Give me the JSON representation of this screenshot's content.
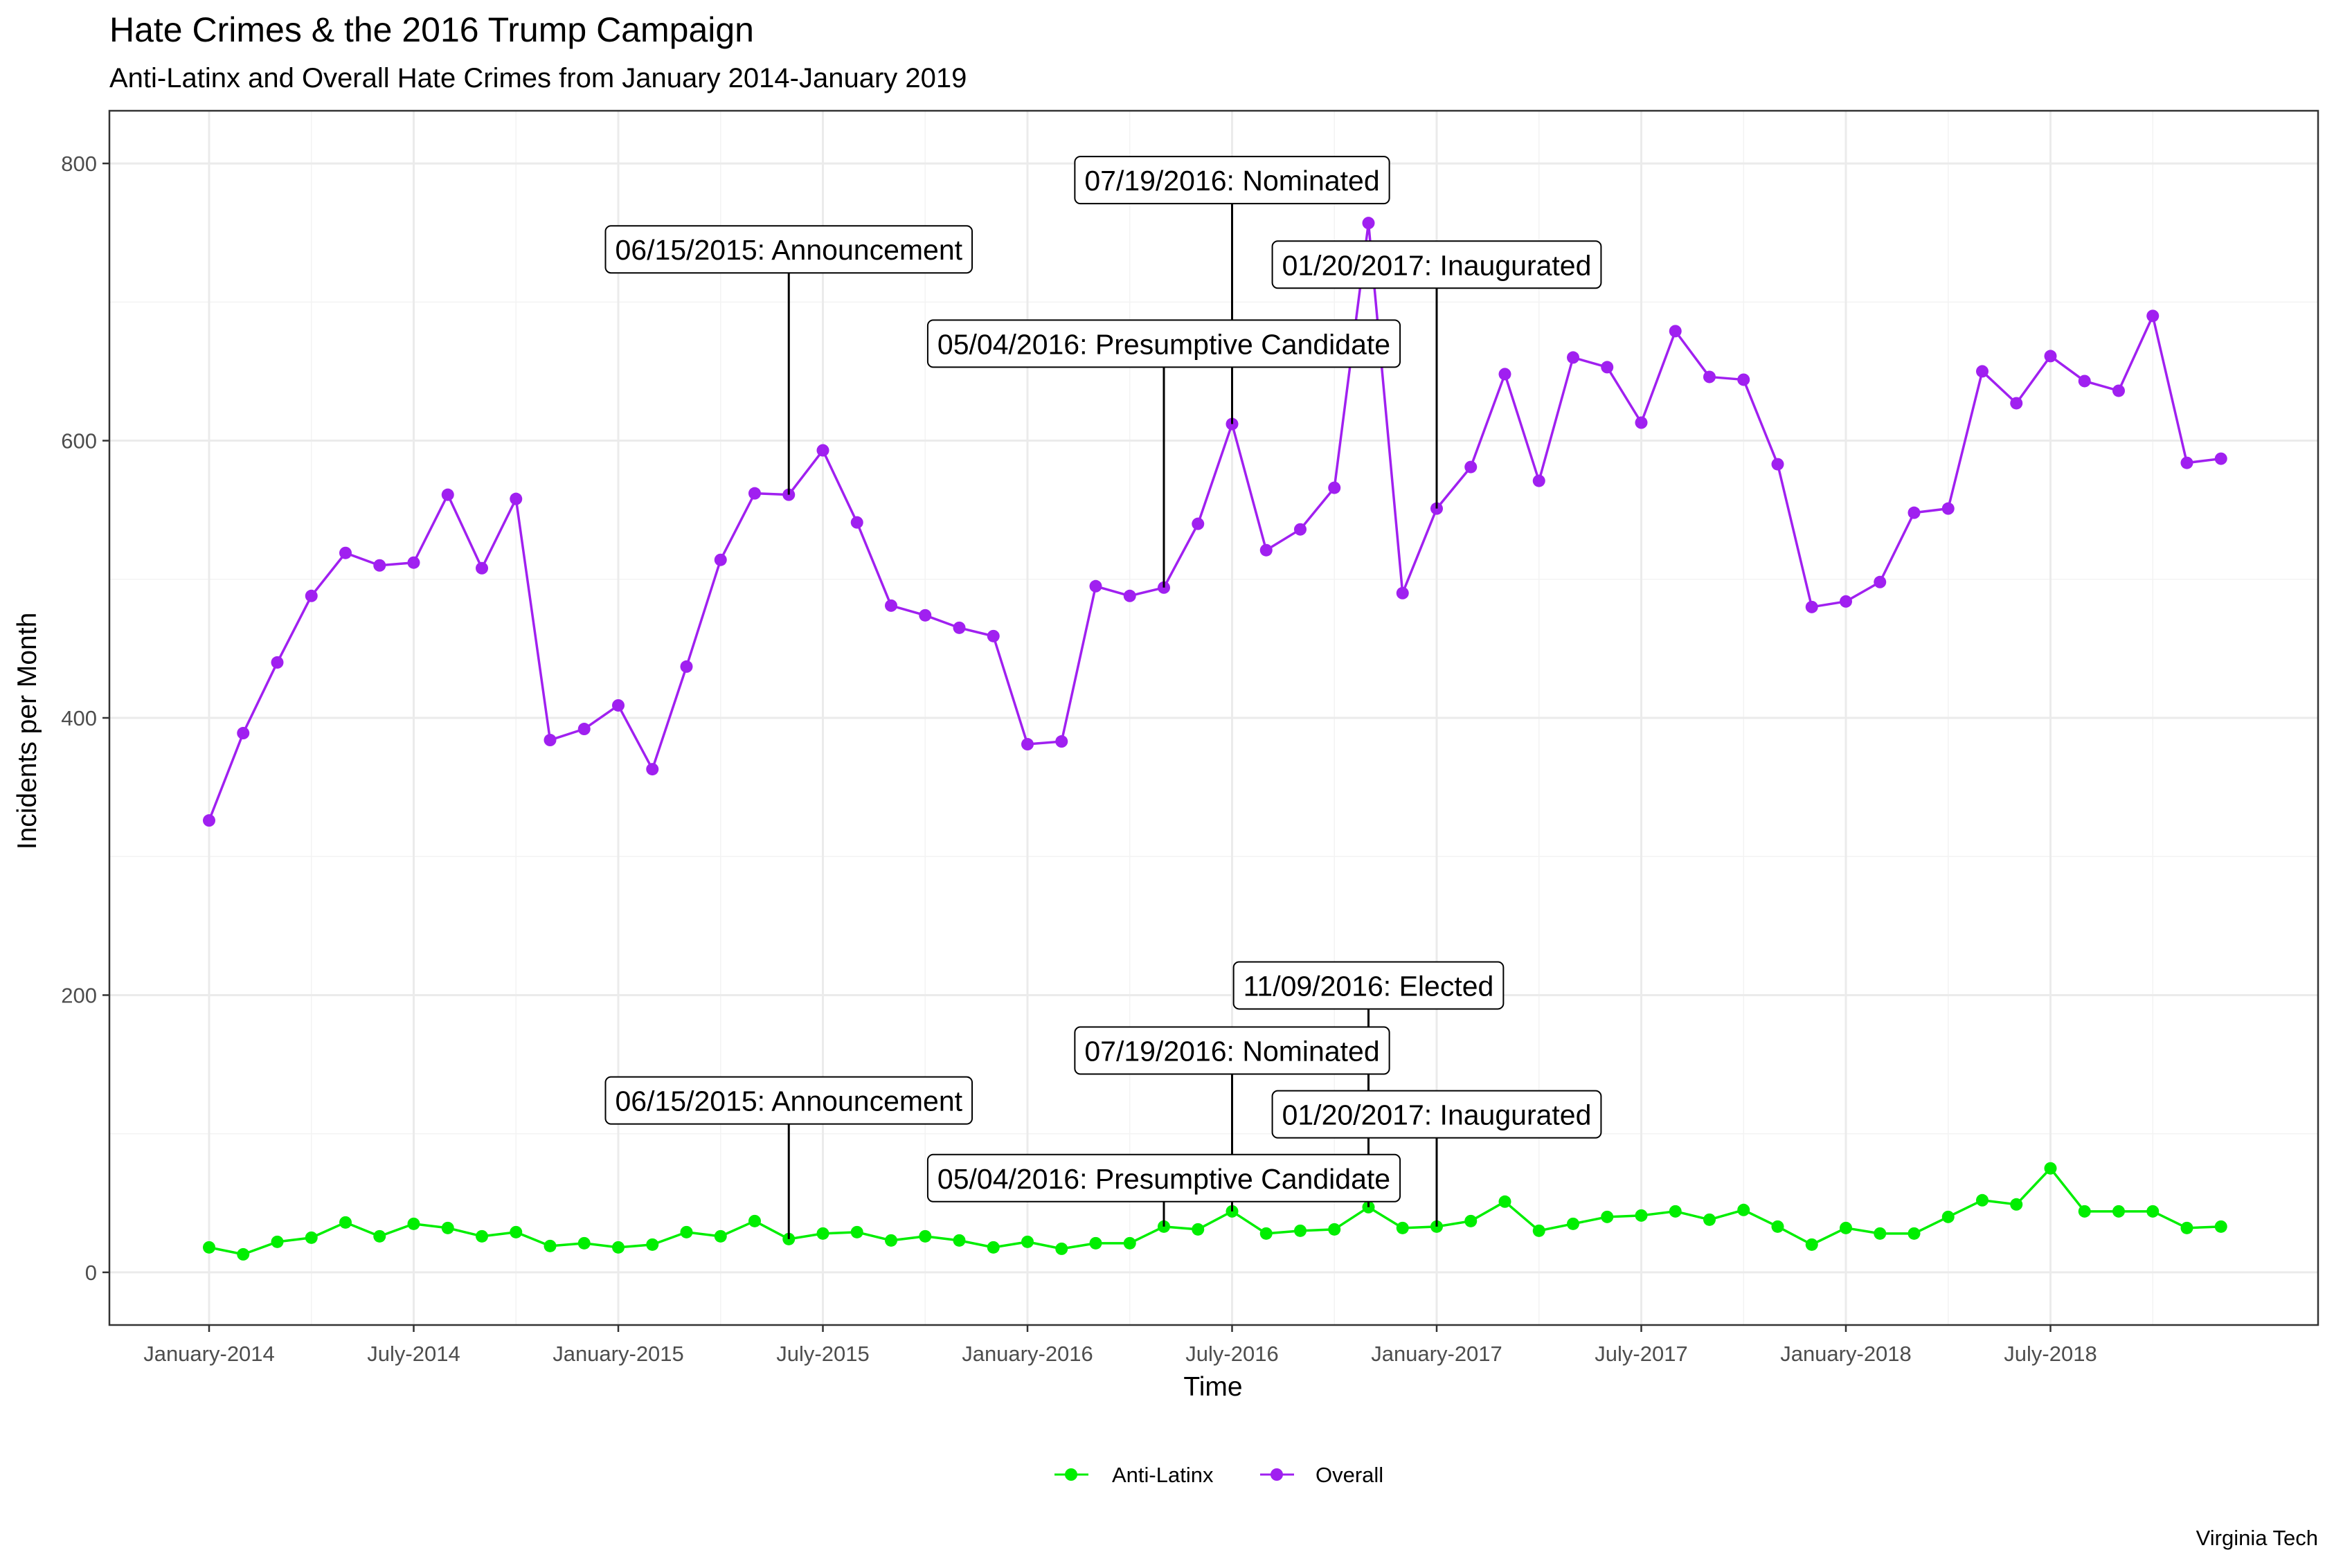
{
  "chart_data": {
    "type": "line",
    "title": "Hate Crimes & the 2016 Trump Campaign",
    "subtitle": "Anti-Latinx and Overall Hate Crimes from January 2014-January 2019",
    "xlabel": "Time",
    "ylabel": "Incidents per Month",
    "caption": "Virginia Tech",
    "ylim": [
      -38,
      838
    ],
    "yticks": [
      0,
      200,
      400,
      600,
      800
    ],
    "x_start": "2014-01",
    "xticks": [
      {
        "label": "January-2014",
        "month": 0
      },
      {
        "label": "July-2014",
        "month": 6
      },
      {
        "label": "January-2015",
        "month": 12
      },
      {
        "label": "July-2015",
        "month": 18
      },
      {
        "label": "January-2016",
        "month": 24
      },
      {
        "label": "July-2016",
        "month": 30
      },
      {
        "label": "January-2017",
        "month": 36
      },
      {
        "label": "July-2017",
        "month": 42
      },
      {
        "label": "January-2018",
        "month": 48
      },
      {
        "label": "July-2018",
        "month": 54
      }
    ],
    "legend_position": "bottom",
    "series": [
      {
        "name": "Anti-Latinx",
        "color": "#00ee00",
        "values": [
          18,
          13,
          22,
          25,
          36,
          26,
          35,
          32,
          26,
          29,
          19,
          21,
          18,
          20,
          29,
          26,
          37,
          24,
          28,
          29,
          23,
          26,
          23,
          18,
          22,
          17,
          21,
          21,
          33,
          31,
          44,
          28,
          30,
          31,
          47,
          32,
          33,
          37,
          51,
          30,
          35,
          40,
          41,
          44,
          38,
          45,
          33,
          20,
          32,
          28,
          28,
          40,
          52,
          49,
          75,
          44,
          44,
          44,
          32,
          33
        ]
      },
      {
        "name": "Overall",
        "color": "#a020f0",
        "values": [
          326,
          389,
          440,
          488,
          519,
          510,
          512,
          561,
          508,
          558,
          384,
          392,
          409,
          363,
          437,
          514,
          562,
          561,
          593,
          541,
          481,
          474,
          465,
          459,
          381,
          383,
          495,
          488,
          494,
          540,
          612,
          521,
          536,
          566,
          757,
          490,
          551,
          581,
          648,
          571,
          660,
          653,
          613,
          679,
          646,
          644,
          583,
          480,
          484,
          498,
          548,
          551,
          650,
          627,
          661,
          643,
          636,
          690,
          584,
          587
        ]
      }
    ],
    "annotations": [
      {
        "label": "06/15/2015: Announcement",
        "month": 17,
        "series": "Overall",
        "label_y": 738
      },
      {
        "label": "05/04/2016: Presumptive Candidate",
        "month": 28,
        "series": "Overall",
        "label_y": 670
      },
      {
        "label": "07/19/2016: Nominated",
        "month": 30,
        "series": "Overall",
        "label_y": 788
      },
      {
        "label": "01/20/2017: Inaugurated",
        "month": 36,
        "series": "Overall",
        "label_y": 727
      },
      {
        "label": "06/15/2015: Announcement",
        "month": 17,
        "series": "Anti-Latinx",
        "label_y": 124
      },
      {
        "label": "05/04/2016: Presumptive Candidate",
        "month": 28,
        "series": "Anti-Latinx",
        "label_y": 68
      },
      {
        "label": "07/19/2016: Nominated",
        "month": 30,
        "series": "Anti-Latinx",
        "label_y": 160
      },
      {
        "label": "11/09/2016: Elected",
        "month": 34,
        "series": "Anti-Latinx",
        "label_y": 207
      },
      {
        "label": "01/20/2017: Inaugurated",
        "month": 36,
        "series": "Anti-Latinx",
        "label_y": 114
      }
    ]
  }
}
